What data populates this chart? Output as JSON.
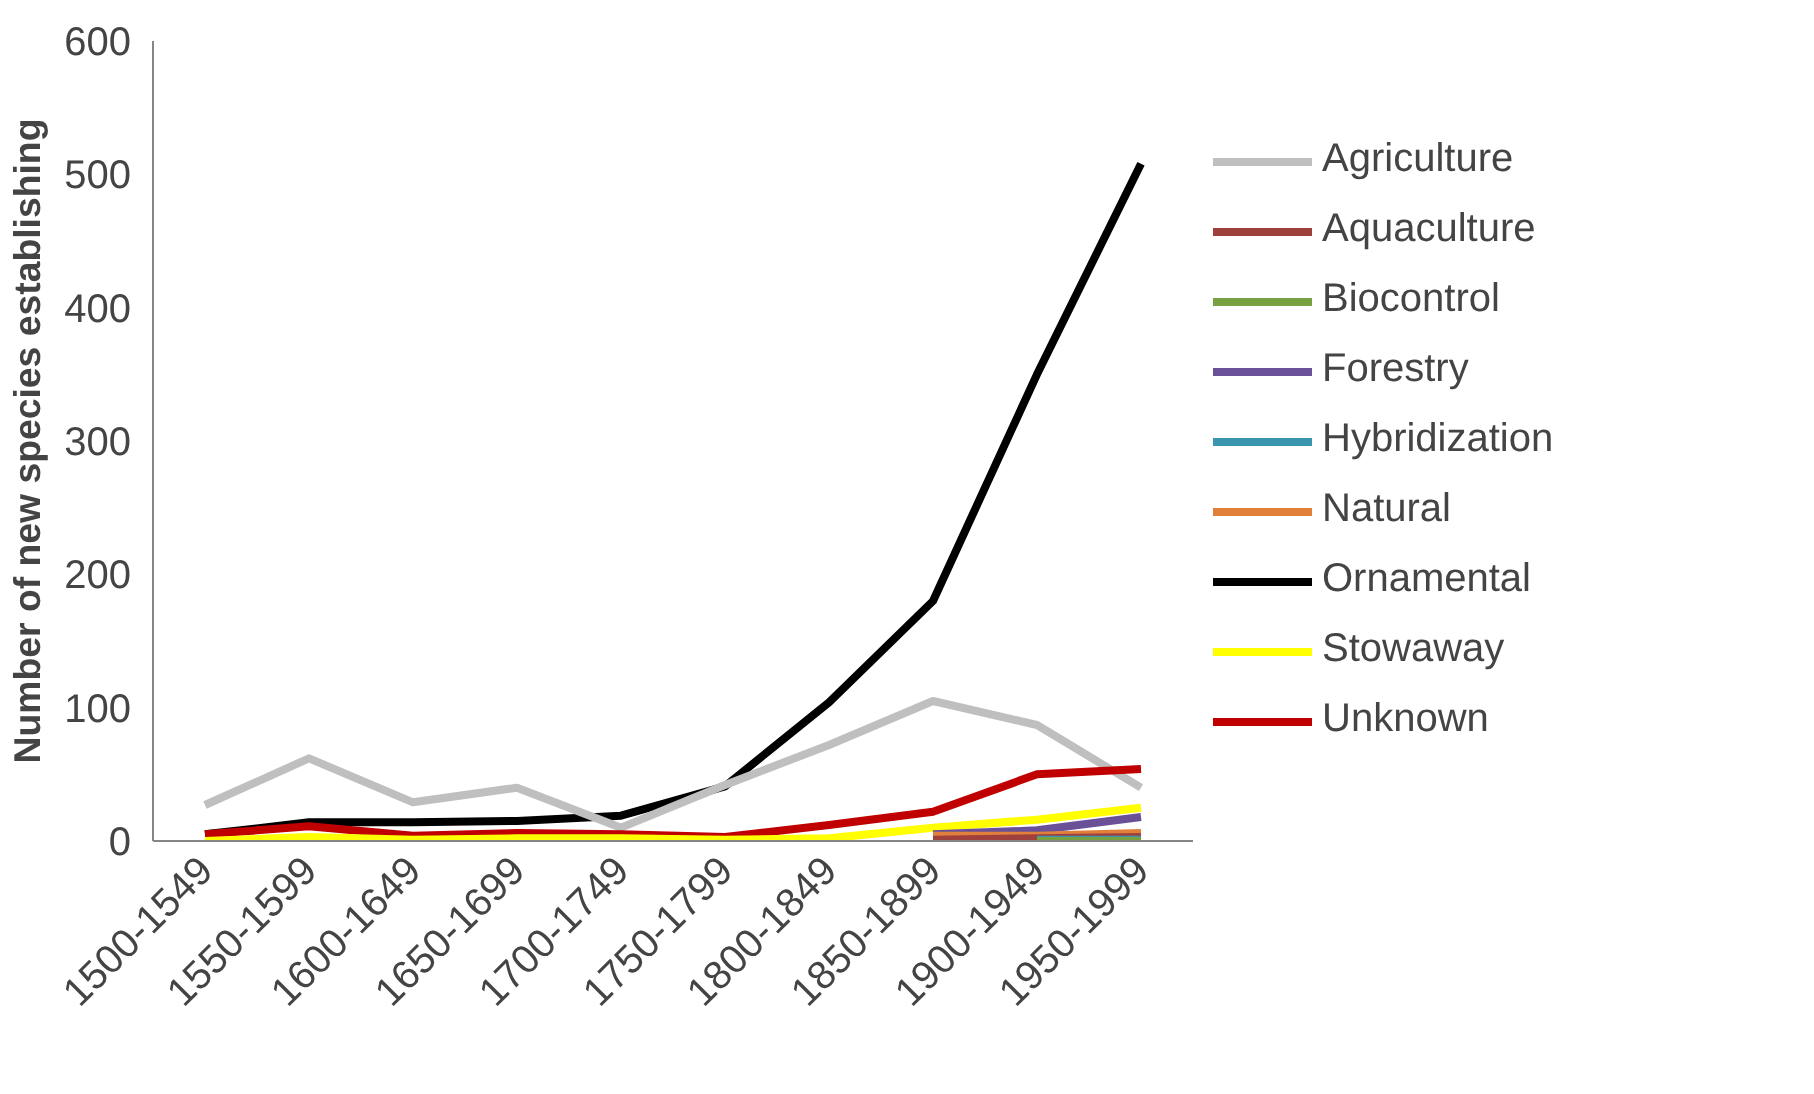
{
  "chart_data": {
    "type": "line",
    "ylabel": "Number of new species establishing",
    "categories": [
      "1500-1549",
      "1550-1599",
      "1600-1649",
      "1650-1699",
      "1700-1749",
      "1750-1799",
      "1800-1849",
      "1850-1899",
      "1900-1949",
      "1950-1999"
    ],
    "ylim": [
      0,
      600
    ],
    "yticks": [
      0,
      100,
      200,
      300,
      400,
      500,
      600
    ],
    "grid": false,
    "legend": "right",
    "series": [
      {
        "name": "Agriculture",
        "color": "#bfbfbf",
        "values": [
          27,
          62,
          29,
          40,
          10,
          42,
          72,
          105,
          87,
          40
        ]
      },
      {
        "name": "Aquaculture",
        "color": "#a0403c",
        "values": [
          null,
          null,
          null,
          null,
          null,
          null,
          null,
          1,
          2,
          3
        ]
      },
      {
        "name": "Biocontrol",
        "color": "#77a040",
        "values": [
          null,
          null,
          null,
          null,
          null,
          null,
          null,
          null,
          0,
          0
        ]
      },
      {
        "name": "Forestry",
        "color": "#6a5096",
        "values": [
          null,
          null,
          null,
          null,
          null,
          null,
          null,
          5,
          8,
          18
        ]
      },
      {
        "name": "Hybridization",
        "color": "#3a96b0",
        "values": [
          null,
          null,
          null,
          null,
          null,
          null,
          null,
          null,
          1,
          1
        ]
      },
      {
        "name": "Natural",
        "color": "#e0803a",
        "values": [
          null,
          null,
          null,
          null,
          null,
          null,
          null,
          4,
          4,
          6
        ]
      },
      {
        "name": "Ornamental",
        "color": "#000000",
        "values": [
          5,
          14,
          14,
          15,
          19,
          41,
          104,
          180,
          350,
          508
        ]
      },
      {
        "name": "Stowaway",
        "color": "#ffff00",
        "values": [
          0,
          3,
          1,
          2,
          2,
          1,
          2,
          10,
          16,
          25
        ]
      },
      {
        "name": "Unknown",
        "color": "#c00000",
        "values": [
          5,
          11,
          4,
          6,
          5,
          3,
          12,
          22,
          50,
          54
        ]
      }
    ]
  }
}
